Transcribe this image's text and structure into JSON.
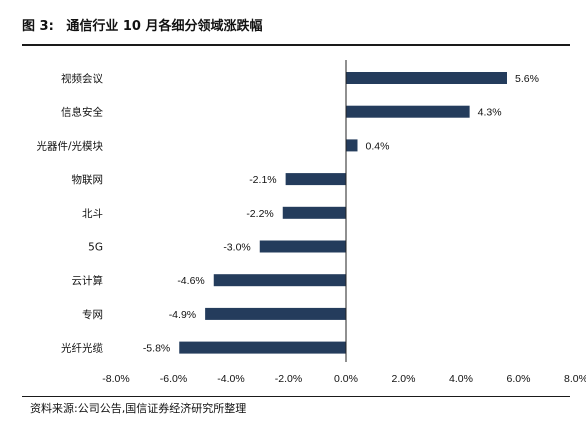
{
  "figure": {
    "label": "图 3:",
    "title": "通信行业 10 月各细分领域涨跌幅",
    "source": "资料来源:公司公告,国信证券经济研究所整理"
  },
  "chart_data": {
    "type": "bar",
    "orientation": "horizontal",
    "categories": [
      "视频会议",
      "信息安全",
      "光器件/光模块",
      "物联网",
      "北斗",
      "5G",
      "云计算",
      "专网",
      "光纤光缆"
    ],
    "values": [
      5.6,
      4.3,
      0.4,
      -2.1,
      -2.2,
      -3.0,
      -4.6,
      -4.9,
      -5.8
    ],
    "value_labels": [
      "5.6%",
      "4.3%",
      "0.4%",
      "-2.1%",
      "-2.2%",
      "-3.0%",
      "-4.6%",
      "-4.9%",
      "-5.8%"
    ],
    "xlim": [
      -8.0,
      8.0
    ],
    "ticks": [
      -8.0,
      -6.0,
      -4.0,
      -2.0,
      0.0,
      2.0,
      4.0,
      6.0,
      8.0
    ],
    "tick_labels": [
      "-8.0%",
      "-6.0%",
      "-4.0%",
      "-2.0%",
      "0.0%",
      "2.0%",
      "4.0%",
      "6.0%",
      "8.0%"
    ],
    "bar_color": "#243c5c",
    "grid": false,
    "legend": "none"
  }
}
